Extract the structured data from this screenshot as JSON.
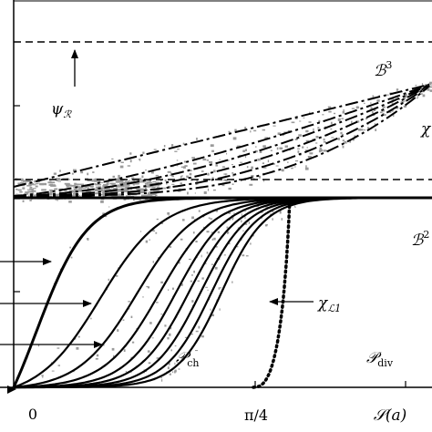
{
  "figure": {
    "x_ticks": {
      "zero": "0",
      "pi_over_4": "π/4"
    },
    "x_axis_label": "𝒮(a)",
    "labels": {
      "psi_R": "ψ",
      "psi_R_sub": "ℛ",
      "B3": "ℬ",
      "B3_sup": "3",
      "B2": "ℬ",
      "B2_sup": "2",
      "chi_right": "χ",
      "chi_L1": "χ",
      "chi_L1_sub": "ℒ1",
      "P_ch": "𝒫",
      "P_ch_sub": "ch",
      "P_div": "𝒫",
      "P_div_sub": "div"
    },
    "colors": {
      "curves": "#000000",
      "scatter": "#9a9a9a"
    }
  }
}
